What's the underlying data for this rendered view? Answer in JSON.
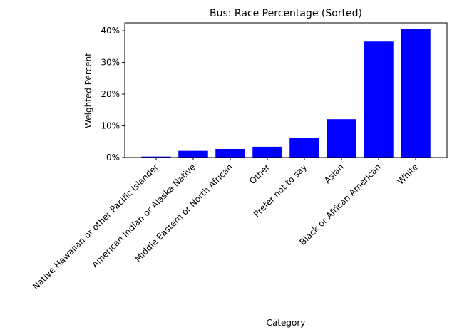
{
  "chart_data": {
    "type": "bar",
    "title": "Bus: Race Percentage (Sorted)",
    "xlabel": "Category",
    "ylabel": "Weighted Percent",
    "categories": [
      "Native Hawaiian or other Pacific Islander",
      "American Indian or Alaska Native",
      "Middle Eastern or North African",
      "Other",
      "Prefer not to say",
      "Asian",
      "Black or African American",
      "White"
    ],
    "values": [
      0.3,
      2.1,
      2.7,
      3.4,
      6.1,
      12.1,
      36.6,
      40.5
    ],
    "y_ticks": [
      "0%",
      "10%",
      "20%",
      "30%",
      "40%"
    ],
    "ylim": [
      0,
      42.5
    ],
    "bar_color": "#0000ff",
    "grid": false,
    "legend": "none"
  }
}
